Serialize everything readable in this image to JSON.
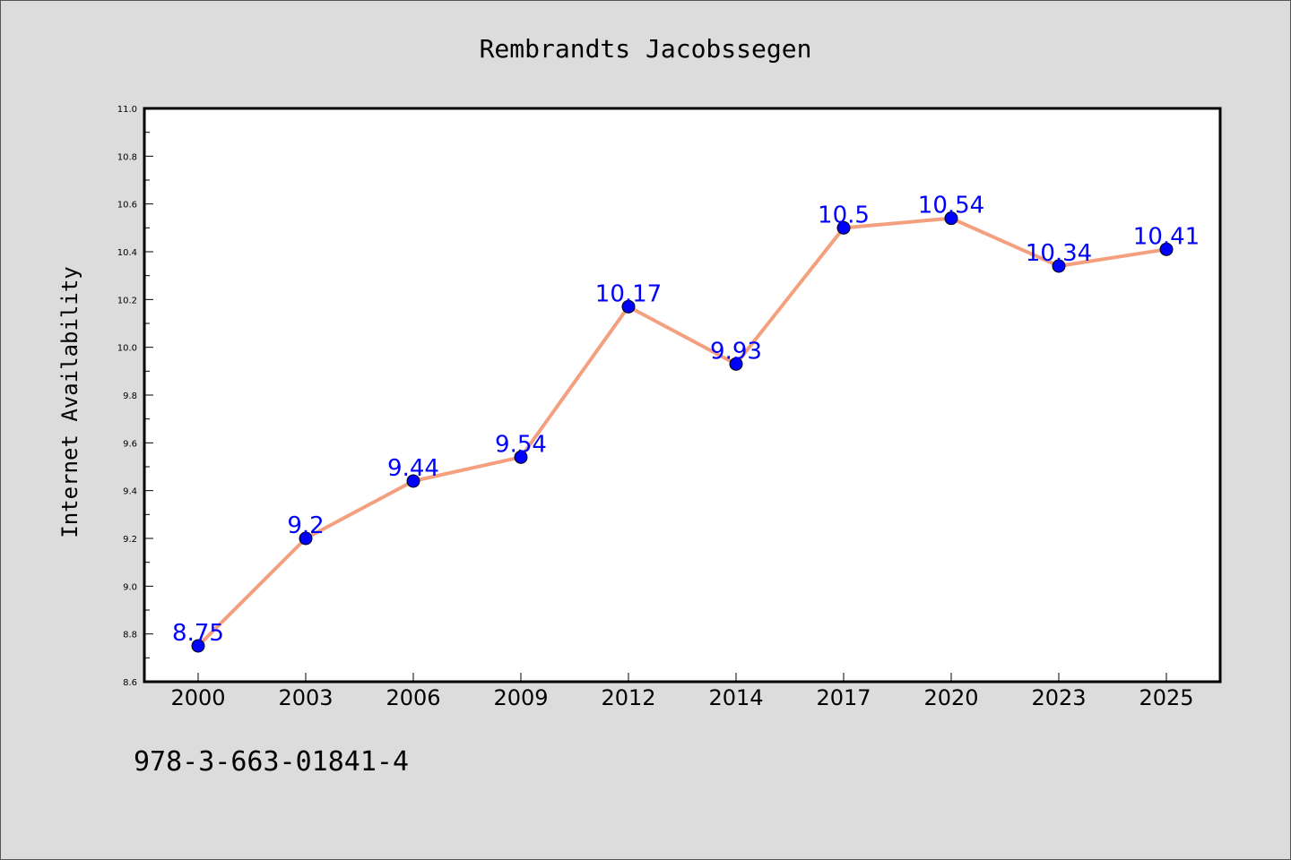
{
  "chart_data": {
    "type": "line",
    "title": "Rembrandts Jacobssegen",
    "xlabel": "",
    "ylabel": "Internet Availability",
    "categories": [
      "2000",
      "2003",
      "2006",
      "2009",
      "2012",
      "2014",
      "2017",
      "2020",
      "2023",
      "2025"
    ],
    "series": [
      {
        "values": [
          8.75,
          9.2,
          9.44,
          9.54,
          10.17,
          9.93,
          10.5,
          10.54,
          10.34,
          10.41
        ],
        "data_labels": [
          "8.75",
          "9.2",
          "9.44",
          "9.54",
          "10.17",
          "9.93",
          "10.5",
          "10.54",
          "10.34",
          "10.41"
        ],
        "line_color": "#f4a07f",
        "marker_color": "#0000ff"
      }
    ],
    "ylim": [
      8.6,
      11.0
    ],
    "yticks": [
      "8.6",
      "8.8",
      "9.0",
      "9.2",
      "9.4",
      "9.6",
      "9.8",
      "10.0",
      "10.2",
      "10.4",
      "10.6",
      "10.8",
      "11.0"
    ],
    "grid": false,
    "legend": "none"
  },
  "footer": {
    "code": "978-3-663-01841-4"
  },
  "colors": {
    "background": "#dcdcdc",
    "plot_area": "#ffffff",
    "label": "#0000ff"
  }
}
